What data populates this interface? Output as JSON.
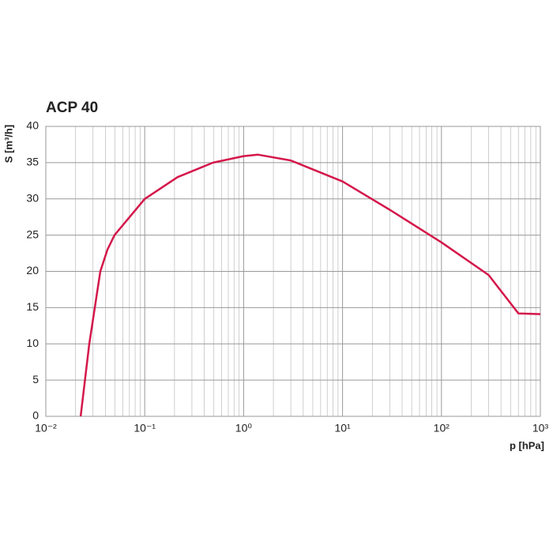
{
  "chart_data": {
    "type": "line",
    "title": "ACP 40",
    "y_label": "S [m³/h]",
    "x_label": "p [hPa]",
    "x": [
      0.0225,
      0.0275,
      0.0356,
      0.042,
      0.0495,
      0.1,
      0.215,
      0.49,
      1.0,
      1.4,
      3,
      10,
      30,
      100,
      300,
      600,
      1000
    ],
    "series": [
      {
        "name": "ACP 40",
        "color": "#d4174a",
        "values": [
          0,
          10,
          20,
          23,
          25,
          30,
          33,
          35,
          35.9,
          36.1,
          35.3,
          32.4,
          28.5,
          24,
          19.5,
          14.2,
          14.1
        ]
      }
    ],
    "xscale": "log",
    "xlim": [
      0.01,
      1000
    ],
    "xticks": [
      {
        "value": 0.01,
        "label": "10⁻²"
      },
      {
        "value": 0.1,
        "label": "10⁻¹"
      },
      {
        "value": 1,
        "label": "10⁰"
      },
      {
        "value": 10,
        "label": "10¹"
      },
      {
        "value": 100,
        "label": "10²"
      },
      {
        "value": 1000,
        "label": "10³"
      }
    ],
    "ylim": [
      0,
      40
    ],
    "yticks": [
      0,
      5,
      10,
      15,
      20,
      25,
      30,
      35,
      40
    ],
    "grid": true,
    "minor_grid": true
  }
}
